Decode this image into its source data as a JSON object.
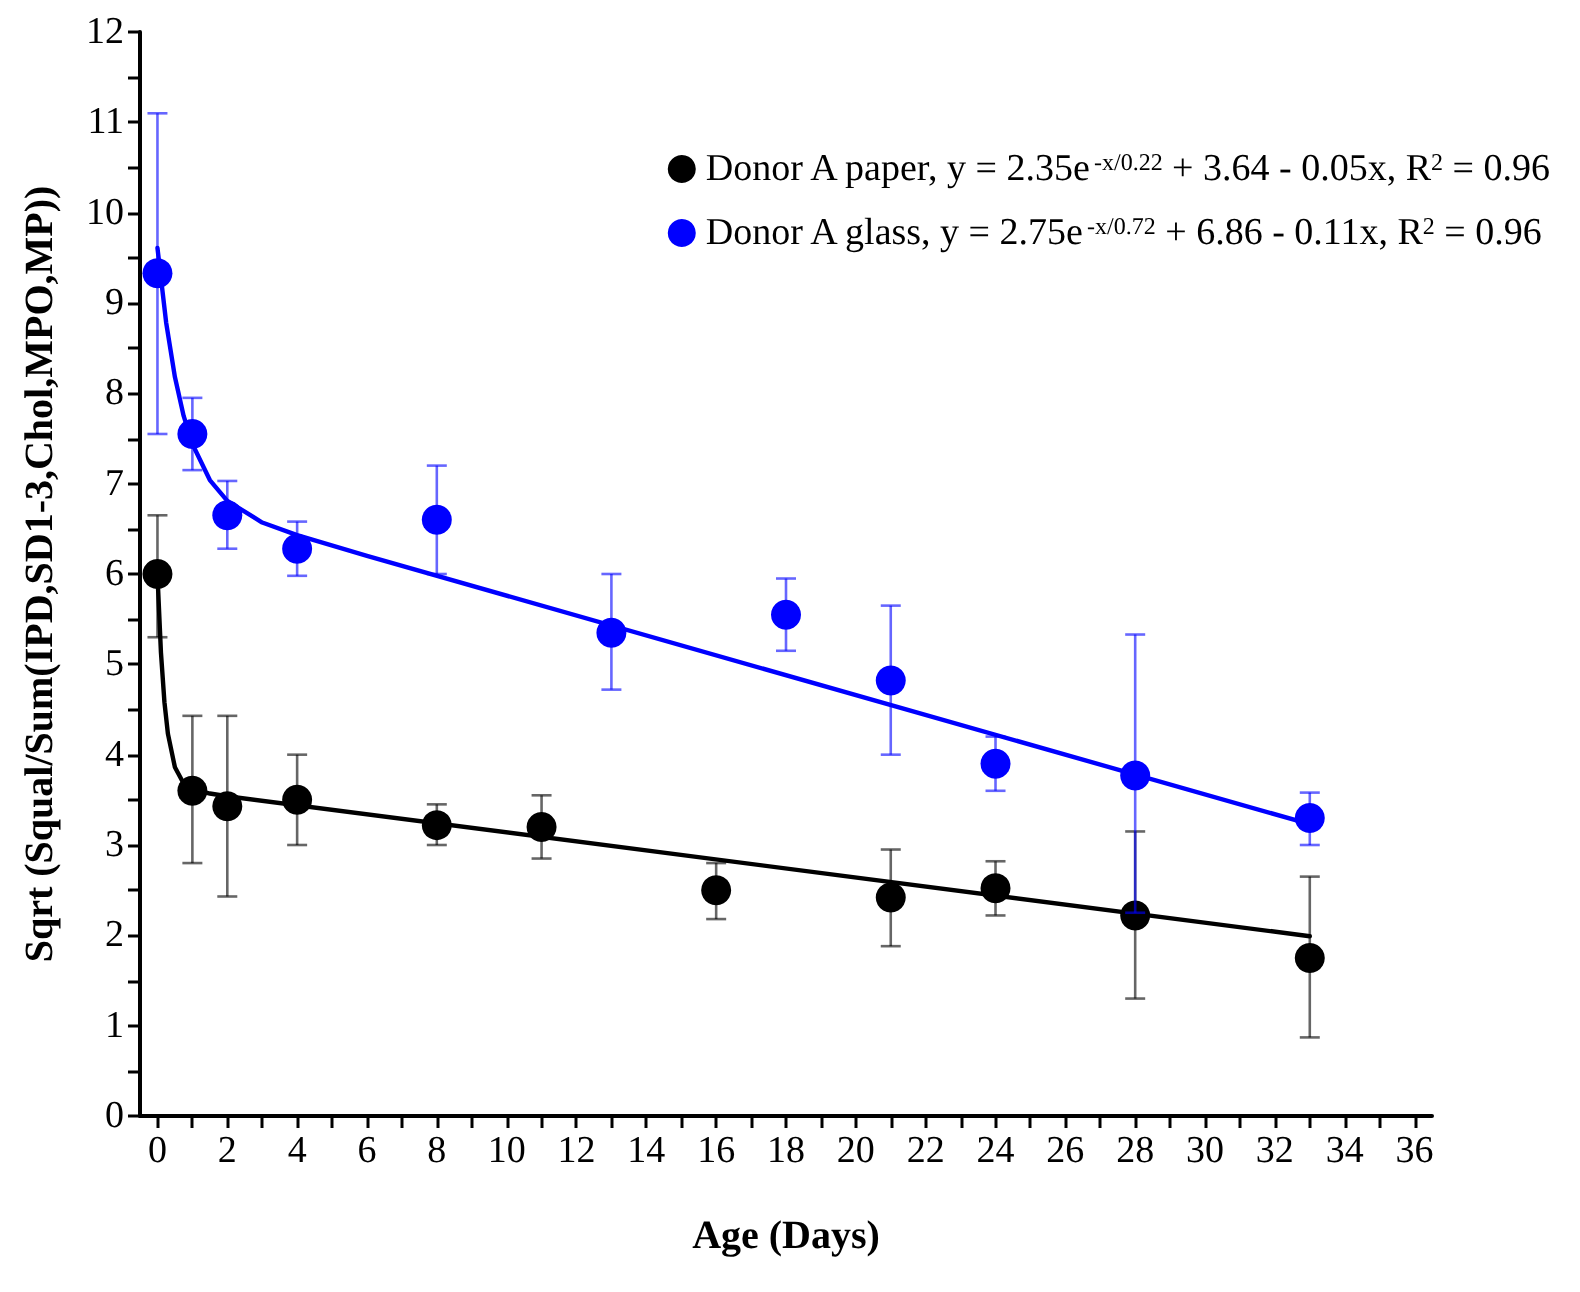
{
  "chart_data": {
    "type": "scatter",
    "xlabel": "Age (Days)",
    "ylabel": "Sqrt (Squal/Sum(IPD,SD1-3,Chol,MPO,MP))",
    "xlim": [
      -0.5,
      36.5
    ],
    "xticks": [
      0,
      {
        "value": 1,
        "label": null
      },
      2,
      {
        "value": 3,
        "label": null
      },
      4,
      {
        "value": 5,
        "label": null
      },
      6,
      {
        "value": 7,
        "label": null
      },
      8,
      {
        "value": 9,
        "label": null
      },
      10,
      {
        "value": 11,
        "label": null
      },
      12,
      {
        "value": 13,
        "label": null
      },
      14,
      {
        "value": 15,
        "label": null
      },
      16,
      {
        "value": 17,
        "label": null
      },
      18,
      {
        "value": 19,
        "label": null
      },
      20,
      {
        "value": 21,
        "label": null
      },
      22,
      {
        "value": 23,
        "label": null
      },
      24,
      {
        "value": 25,
        "label": null
      },
      26,
      {
        "value": 27,
        "label": null
      },
      28,
      {
        "value": 29,
        "label": null
      },
      30,
      {
        "value": 31,
        "label": null
      },
      32,
      {
        "value": 33,
        "label": null
      },
      34,
      {
        "value": 35,
        "label": null
      },
      36
    ],
    "ylim": [
      0,
      12
    ],
    "yticks": [
      0,
      {
        "value": 0.5,
        "label": null
      },
      1,
      {
        "value": 1.5,
        "label": null
      },
      2,
      {
        "value": 2.5,
        "label": null
      },
      3,
      {
        "value": 3.5,
        "label": null
      },
      4,
      {
        "value": 4.5,
        "label": null
      },
      5,
      {
        "value": 5.5,
        "label": null
      },
      6,
      {
        "value": 6.5,
        "label": null
      },
      7,
      {
        "value": 7.5,
        "label": null
      },
      8,
      {
        "value": 8.5,
        "label": null
      },
      9,
      {
        "value": 9.5,
        "label": null
      },
      10,
      {
        "value": 10.5,
        "label": null
      },
      11,
      {
        "value": 11.5,
        "label": null
      },
      12
    ],
    "grid": false,
    "legend": "top right",
    "marker": "circle",
    "series": [
      {
        "name": "Donor A paper, y = 2.35e$^{-x/0.22}$ + 3.64 - 0.05x, R$^{2}$ = 0.96",
        "color": "#000000",
        "x": [
          0,
          1,
          2,
          4,
          8,
          11,
          16,
          21,
          24,
          28,
          33
        ],
        "values": [
          6.0,
          3.6,
          3.43,
          3.5,
          3.22,
          3.2,
          2.5,
          2.42,
          2.52,
          2.22,
          1.75
        ],
        "errors": [
          [
            5.3,
            6.65
          ],
          [
            2.8,
            4.43
          ],
          [
            2.43,
            4.43
          ],
          [
            3.0,
            4.0
          ],
          [
            3.0,
            3.45
          ],
          [
            2.85,
            3.55
          ],
          [
            2.18,
            2.8
          ],
          [
            1.88,
            2.95
          ],
          [
            2.22,
            2.82
          ],
          [
            1.3,
            3.15
          ],
          [
            0.87,
            2.65
          ]
        ]
      },
      {
        "name": "Donor A glass, y = 2.75e$^{-x/0.72}$ + 6.86 - 0.11x, R$^{2}$ = 0.96",
        "color": "#0000ff",
        "x": [
          0,
          1,
          2,
          4,
          8,
          13,
          18,
          21,
          24,
          28,
          33
        ],
        "values": [
          9.33,
          7.55,
          6.65,
          6.28,
          6.6,
          5.35,
          5.55,
          4.82,
          3.9,
          3.77,
          3.3
        ],
        "errors": [
          [
            7.55,
            11.1
          ],
          [
            7.15,
            7.95
          ],
          [
            6.28,
            7.03
          ],
          [
            5.98,
            6.58
          ],
          [
            6.0,
            7.2
          ],
          [
            4.72,
            6.0
          ],
          [
            5.15,
            5.95
          ],
          [
            4.0,
            5.65
          ],
          [
            3.6,
            4.2
          ],
          [
            2.25,
            5.33
          ],
          [
            3.0,
            3.58
          ]
        ]
      },
      {
        "type": "line",
        "color": "#000000",
        "line_style": "solid",
        "marker": "none",
        "x": [
          0,
          0.1,
          0.2,
          0.3,
          0.5,
          0.75,
          1,
          1.5,
          2,
          33
        ],
        "values": [
          5.99,
          5.13,
          4.58,
          4.23,
          3.86,
          3.68,
          3.62,
          3.57,
          3.54,
          1.99
        ]
      },
      {
        "type": "line",
        "color": "#0000ff",
        "line_style": "solid",
        "marker": "none",
        "x": [
          0,
          0.25,
          0.5,
          0.75,
          1,
          1.5,
          2,
          3,
          4,
          6,
          33
        ],
        "values": [
          9.61,
          8.78,
          8.18,
          7.75,
          7.44,
          7.04,
          6.81,
          6.57,
          6.43,
          6.2,
          3.23
        ]
      }
    ]
  }
}
